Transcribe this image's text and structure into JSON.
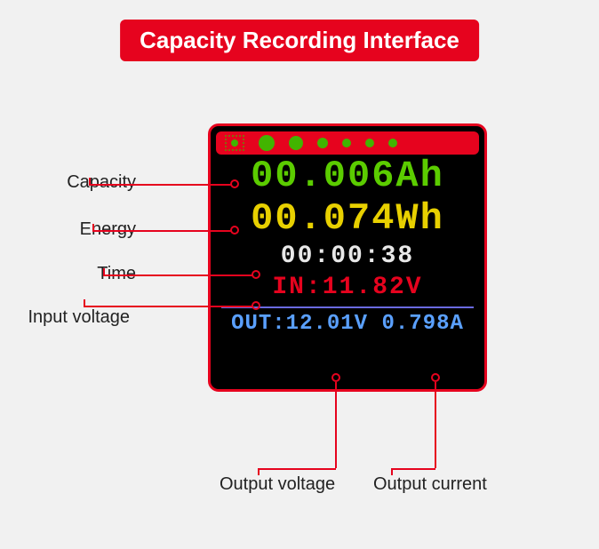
{
  "title": "Capacity Recording Interface",
  "colors": {
    "banner_bg": "#e6031e",
    "banner_text": "#ffffff",
    "page_bg": "#f1f1f1",
    "device_bg": "#000000",
    "device_border": "#e6031e",
    "statusbar_bg": "#e6031e",
    "statusbar_fg": "#42b400",
    "capacity": "#5bcc00",
    "energy": "#e8d000",
    "time": "#e8e8e8",
    "input": "#e6031e",
    "divider": "#6a6ae0",
    "output": "#5aa0ff",
    "leader": "#e6031e",
    "label_text": "#222222"
  },
  "readings": {
    "capacity": "00.006Ah",
    "energy": "00.074Wh",
    "time": "00:00:38",
    "input_prefix": "IN:",
    "input_value": "11.82V",
    "output_prefix": "OUT:",
    "output_voltage": "12.01V",
    "output_current": "0.798A"
  },
  "status_dots": [
    {
      "size": 18
    },
    {
      "size": 16
    },
    {
      "size": 12
    },
    {
      "size": 10
    },
    {
      "size": 10
    },
    {
      "size": 10
    }
  ],
  "labels": {
    "capacity": "Capacity",
    "energy": "Energy",
    "time": "Time",
    "input_voltage": "Input voltage",
    "output_voltage": "Output voltage",
    "output_current": "Output current"
  },
  "layout": {
    "title_fontsize": 26,
    "big_fontsize": 42,
    "med_fontsize": 28,
    "out_fontsize": 24,
    "label_fontsize": 20
  }
}
